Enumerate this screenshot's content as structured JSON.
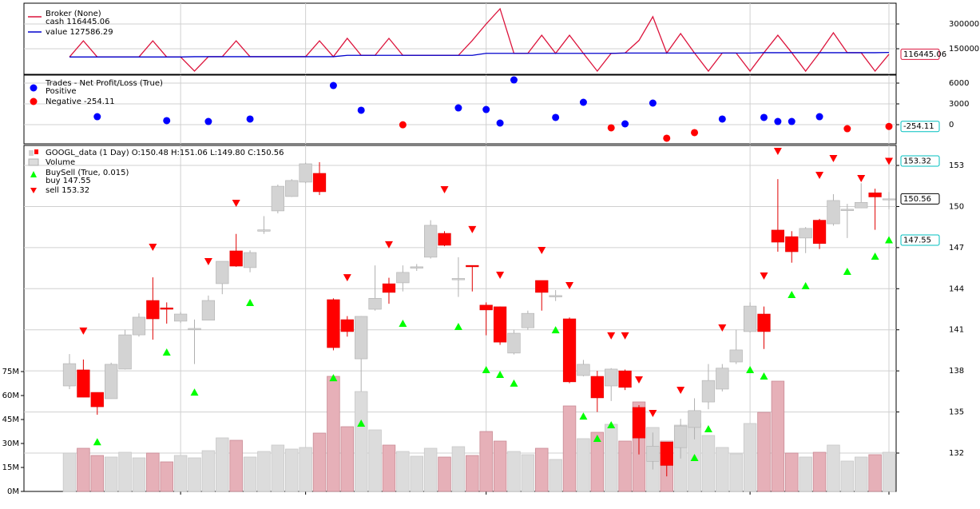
{
  "chart_data": [
    {
      "type": "line",
      "title": "Broker (None)",
      "title_color": "#dc143c",
      "series": [
        {
          "name": "cash 116445.06",
          "color": "#dc143c",
          "axis": "y2",
          "tag_color": "#dc143c",
          "values": [
            100000,
            198000,
            100000,
            100000,
            100000,
            100000,
            198000,
            100000,
            100000,
            14500,
            102000,
            102000,
            198000,
            102000,
            102000,
            102000,
            102000,
            102000,
            198000,
            102000,
            213000,
            110000,
            110000,
            213000,
            110000,
            110000,
            110000,
            110000,
            110000,
            200000,
            300000,
            392000,
            122000,
            122000,
            232000,
            122000,
            232000,
            122000,
            14500,
            122000,
            124000,
            200000,
            344000,
            124000,
            242000,
            124000,
            14500,
            124000,
            124000,
            14500,
            126000,
            232000,
            126000,
            14500,
            126000,
            247000,
            126000,
            126000,
            14500,
            116445.06
          ]
        },
        {
          "name": "value 127586.29",
          "color": "#0000cd",
          "axis": "y2",
          "values": [
            100000,
            100000,
            100000,
            100000,
            100000,
            100000,
            100000,
            100000,
            100000,
            102000,
            102000,
            102000,
            102000,
            102000,
            102000,
            102000,
            102000,
            102000,
            102000,
            102000,
            110000,
            110000,
            110000,
            110000,
            110000,
            110000,
            110000,
            110000,
            110000,
            110000,
            122000,
            122000,
            122000,
            122000,
            122000,
            122000,
            122000,
            122000,
            122000,
            122000,
            124000,
            124000,
            124000,
            124000,
            124000,
            124000,
            124000,
            124000,
            124000,
            124000,
            126000,
            126000,
            126000,
            126000,
            126000,
            126000,
            126000,
            126000,
            126000,
            127586.29
          ]
        }
      ],
      "y2lim": [
        -4839,
        425806
      ],
      "y2ticks": [
        150000,
        300000
      ],
      "grid": true
    },
    {
      "type": "scatter",
      "title": "Trades - Net Profit/Loss (True)",
      "series": [
        {
          "name": "Positive",
          "color": "#0000ff",
          "axis": "y2",
          "values": [
            null,
            null,
            1150,
            null,
            null,
            null,
            null,
            580,
            null,
            null,
            460,
            null,
            null,
            810,
            null,
            null,
            null,
            null,
            null,
            5650,
            null,
            2080,
            null,
            null,
            null,
            null,
            null,
            null,
            2420,
            null,
            2190,
            230,
            6460,
            null,
            null,
            1040,
            null,
            3230,
            null,
            null,
            115,
            null,
            3115,
            null,
            null,
            null,
            null,
            810,
            null,
            null,
            1040,
            460,
            460,
            null,
            1150,
            null,
            null,
            null,
            null,
            null
          ]
        },
        {
          "name": "Negative -254.11",
          "color": "#ff0000",
          "axis": "y2",
          "tag_color": "#00bfbf",
          "values": [
            null,
            null,
            null,
            null,
            null,
            null,
            null,
            null,
            null,
            null,
            null,
            null,
            null,
            null,
            null,
            null,
            null,
            null,
            null,
            null,
            null,
            null,
            null,
            null,
            -20,
            null,
            null,
            null,
            null,
            null,
            null,
            null,
            null,
            null,
            null,
            null,
            null,
            null,
            null,
            -460,
            null,
            null,
            null,
            -1960,
            null,
            -1150,
            null,
            null,
            null,
            null,
            null,
            null,
            null,
            null,
            null,
            null,
            -580,
            null,
            null,
            -254.11
          ]
        }
      ],
      "y2lim": [
        -2770,
        7154
      ],
      "y2ticks": [
        0,
        3000,
        6000
      ],
      "grid": true
    },
    {
      "type": "candlestick",
      "title": "GOOGL_data (1 Day) O:150.48 H:151.06 L:149.80 C:150.56",
      "up_color": "#d3d3d3",
      "down_color": "#ff0000",
      "close_tag_color": "#000000",
      "open": [
        136.9,
        138.07,
        136.43,
        135.97,
        138.13,
        140.63,
        143.14,
        142.6,
        141.63,
        141.0,
        141.7,
        144.37,
        146.76,
        145.54,
        148.2,
        149.68,
        150.73,
        151.78,
        152.42,
        143.2,
        141.74,
        138.88,
        142.5,
        144.36,
        144.43,
        145.5,
        146.3,
        148.04,
        144.65,
        145.7,
        142.8,
        142.68,
        139.3,
        141.15,
        144.6,
        143.4,
        141.8,
        137.66,
        137.6,
        136.9,
        138.0,
        135.33,
        131.4,
        132.8,
        132.4,
        133.87,
        135.73,
        136.67,
        138.65,
        140.87,
        142.15,
        148.28,
        147.8,
        147.7,
        149.0,
        148.74,
        149.7,
        149.9,
        151.0,
        150.48
      ],
      "high": [
        139.23,
        138.83,
        136.43,
        138.6,
        141.0,
        142.2,
        144.83,
        143.0,
        142.3,
        141.75,
        143.5,
        146.0,
        148.0,
        146.8,
        149.3,
        151.6,
        152.0,
        153.2,
        153.24,
        143.3,
        142.0,
        142.0,
        145.7,
        144.8,
        145.7,
        145.8,
        149.0,
        148.2,
        146.3,
        145.7,
        143.0,
        142.7,
        141.0,
        142.4,
        144.6,
        143.9,
        141.9,
        138.8,
        138.0,
        138.2,
        138.1,
        135.5,
        133.5,
        132.8,
        134.5,
        136.0,
        138.5,
        138.5,
        141.0,
        143.0,
        142.7,
        152.0,
        148.2,
        148.5,
        149.1,
        150.9,
        150.2,
        151.7,
        151.3,
        151.06
      ],
      "low": [
        136.67,
        136.08,
        134.8,
        135.97,
        138.1,
        140.5,
        140.28,
        141.45,
        141.5,
        138.5,
        141.7,
        143.6,
        145.6,
        145.2,
        148.0,
        149.5,
        150.7,
        151.7,
        150.84,
        139.5,
        140.5,
        136.5,
        142.4,
        142.9,
        143.8,
        145.3,
        146.2,
        147.1,
        143.4,
        143.8,
        140.6,
        139.9,
        139.2,
        141.0,
        142.4,
        143.1,
        137.1,
        137.6,
        135.0,
        135.8,
        136.6,
        131.9,
        130.8,
        130.3,
        131.6,
        133.0,
        135.2,
        136.5,
        138.5,
        140.8,
        139.6,
        146.7,
        145.9,
        146.6,
        146.9,
        148.6,
        147.7,
        149.9,
        148.3,
        149.8
      ],
      "close": [
        138.53,
        136.08,
        135.38,
        138.48,
        140.63,
        141.92,
        141.8,
        142.5,
        142.15,
        141.1,
        143.14,
        146.0,
        145.65,
        146.64,
        148.3,
        151.48,
        151.9,
        153.12,
        151.08,
        139.7,
        140.87,
        141.98,
        143.3,
        143.73,
        145.19,
        145.6,
        148.63,
        147.17,
        144.75,
        145.6,
        142.45,
        140.1,
        140.75,
        142.2,
        143.73,
        143.5,
        137.2,
        138.48,
        136.03,
        138.13,
        136.8,
        133.1,
        132.5,
        131.1,
        133.98,
        135.1,
        137.3,
        138.2,
        139.53,
        142.73,
        140.87,
        147.4,
        146.7,
        148.4,
        147.3,
        150.44,
        149.8,
        150.3,
        150.7,
        150.56
      ],
      "volume": {
        "name": "Volume",
        "up_color": "#dcdcdc",
        "down_color": "#e6b0b8",
        "values": [
          24,
          27,
          22.5,
          21.5,
          24.5,
          21,
          24,
          18.5,
          22.5,
          21,
          25.5,
          33.5,
          32,
          21.5,
          25,
          29,
          26.5,
          27.5,
          36.5,
          72,
          40.5,
          62.5,
          38.5,
          29,
          25,
          22,
          27,
          21.5,
          28,
          22.5,
          37.5,
          31.5,
          25,
          23,
          27,
          20,
          53.5,
          33,
          37,
          42,
          31.5,
          56,
          40,
          31.5,
          41.5,
          42.5,
          35,
          27.5,
          23.5,
          42.5,
          49.5,
          69,
          24,
          21.5,
          24.5,
          29,
          19,
          21.5,
          23,
          24.5
        ]
      },
      "series_title": "BuySell (True, 0.015)",
      "series": [
        {
          "name": "buy 147.55",
          "marker": "up",
          "color": "#00ff00",
          "tag_color": "#00bfbf",
          "values": [
            null,
            null,
            132.8,
            null,
            null,
            null,
            null,
            139.35,
            null,
            136.43,
            null,
            null,
            null,
            142.97,
            null,
            null,
            null,
            null,
            null,
            137.48,
            null,
            134.16,
            null,
            null,
            141.45,
            null,
            null,
            null,
            141.22,
            null,
            138.07,
            137.72,
            137.08,
            null,
            null,
            140.98,
            null,
            134.68,
            133.05,
            134.04,
            null,
            null,
            null,
            null,
            null,
            131.65,
            133.75,
            null,
            null,
            138.07,
            137.6,
            null,
            143.55,
            144.19,
            null,
            null,
            145.24,
            null,
            146.35,
            147.55
          ]
        },
        {
          "name": "sell 153.32",
          "marker": "down",
          "color": "#ff0000",
          "tag_color": "#00bfbf",
          "values": [
            null,
            140.93,
            null,
            null,
            null,
            null,
            147.05,
            null,
            null,
            null,
            146.0,
            null,
            150.26,
            null,
            null,
            null,
            null,
            null,
            null,
            null,
            144.83,
            null,
            null,
            147.23,
            null,
            null,
            null,
            151.25,
            null,
            148.34,
            null,
            145.01,
            null,
            null,
            146.82,
            null,
            144.25,
            null,
            null,
            140.58,
            140.58,
            137.37,
            134.92,
            null,
            136.61,
            null,
            null,
            141.16,
            null,
            null,
            144.95,
            154.05,
            null,
            null,
            152.3,
            153.53,
            null,
            152.07,
            null,
            153.32
          ]
        }
      ],
      "y2lim": [
        129.2,
        154.46
      ],
      "y2ticks": [
        132,
        135,
        138,
        141,
        144,
        147,
        150,
        153
      ],
      "ylim": [
        0,
        216.5
      ],
      "yticks": [
        {
          "value": 0,
          "label": "0M"
        },
        {
          "value": 15,
          "label": "15M"
        },
        {
          "value": 30,
          "label": "30M"
        },
        {
          "value": 45,
          "label": "45M"
        },
        {
          "value": 60,
          "label": "60M"
        },
        {
          "value": 75,
          "label": "75M"
        }
      ],
      "xticks": [
        8,
        17,
        30,
        49,
        59
      ],
      "grid": true
    }
  ]
}
